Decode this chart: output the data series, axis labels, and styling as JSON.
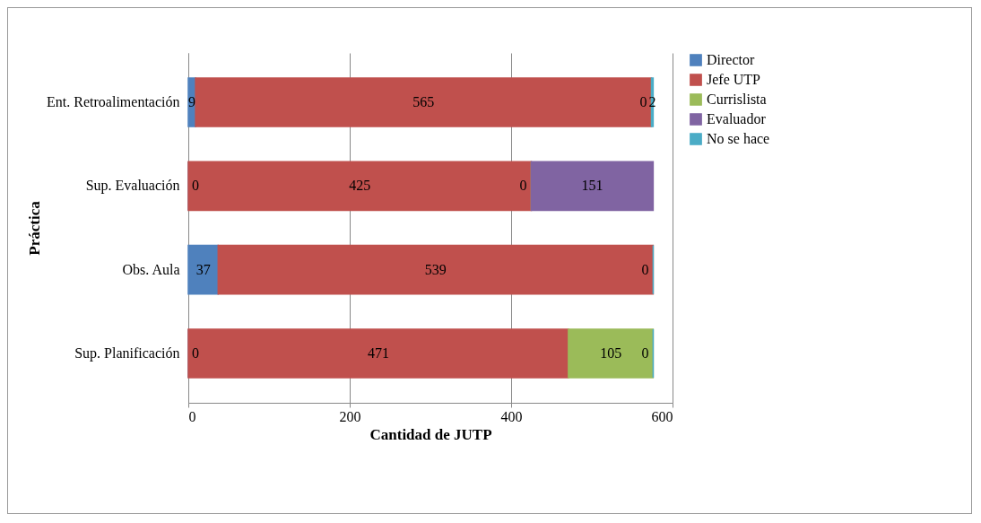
{
  "chart_data": {
    "type": "bar",
    "orientation": "horizontal",
    "stacked": true,
    "data_labels": true,
    "xlabel": "Cantidad de JUTP",
    "ylabel": "Práctica",
    "categories": [
      "Ent. Retroalimentación",
      "Sup. Evaluación",
      "Obs. Aula",
      "Sup. Planificación"
    ],
    "series": [
      {
        "name": "Director",
        "color": "#4f81bd",
        "values": [
          9,
          0,
          37,
          0
        ]
      },
      {
        "name": "Jefe UTP",
        "color": "#c0504d",
        "values": [
          565,
          425,
          539,
          471
        ]
      },
      {
        "name": "Currislista",
        "color": "#9bbb59",
        "values": [
          0,
          0,
          null,
          105
        ]
      },
      {
        "name": "Evaluador",
        "color": "#8064a2",
        "values": [
          null,
          151,
          null,
          null
        ]
      },
      {
        "name": "No se hace",
        "color": "#4bacc6",
        "values": [
          2,
          null,
          0,
          0
        ]
      }
    ],
    "xlim": [
      0,
      600
    ],
    "xticks": [
      0,
      200,
      400,
      600
    ],
    "grid": "x",
    "legend": "right"
  }
}
